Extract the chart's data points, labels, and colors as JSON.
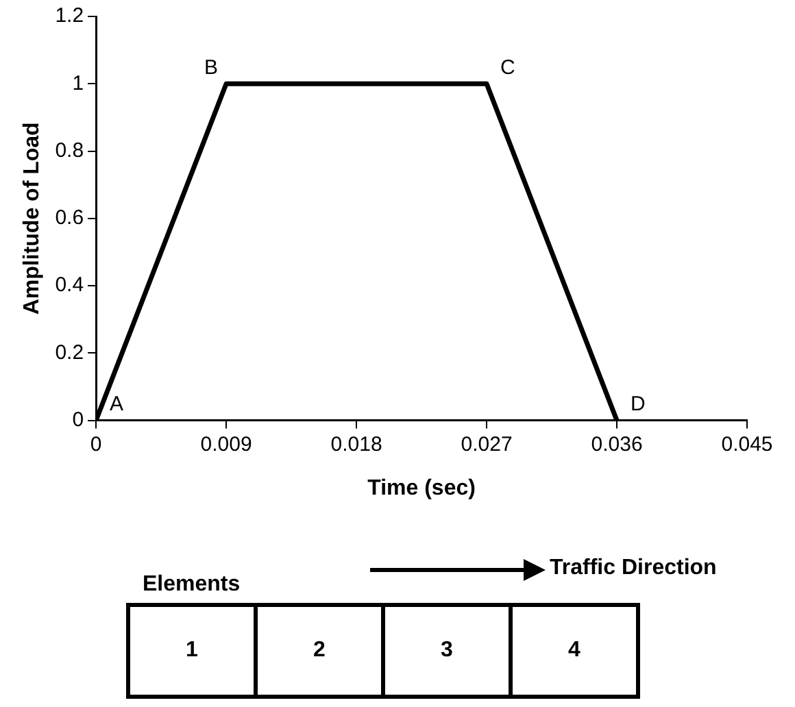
{
  "chart_data": {
    "type": "line",
    "xlabel": "Time (sec)",
    "ylabel": "Amplitude of Load",
    "x": [
      0,
      0.009,
      0.027,
      0.036
    ],
    "series": [
      {
        "color": "#000000",
        "values": [
          0,
          1,
          1,
          0
        ]
      }
    ],
    "xlim": [
      0,
      0.045
    ],
    "xticks": [
      0,
      0.009,
      0.018,
      0.027,
      0.036,
      0.045
    ],
    "ylim": [
      0,
      1.2
    ],
    "yticks": [
      0,
      0.2,
      0.4,
      0.6,
      0.8,
      1,
      1.2
    ],
    "grid": false,
    "legend": false,
    "marker": "none",
    "line_style": "solid",
    "annotations": [
      {
        "text": "A",
        "x": 0,
        "y": 0
      },
      {
        "text": "B",
        "x": 0.009,
        "y": 1
      },
      {
        "text": "C",
        "x": 0.027,
        "y": 1
      },
      {
        "text": "D",
        "x": 0.036,
        "y": 0
      },
      "Elements",
      "Traffic Direction",
      "1",
      "2",
      "3",
      "4"
    ]
  }
}
